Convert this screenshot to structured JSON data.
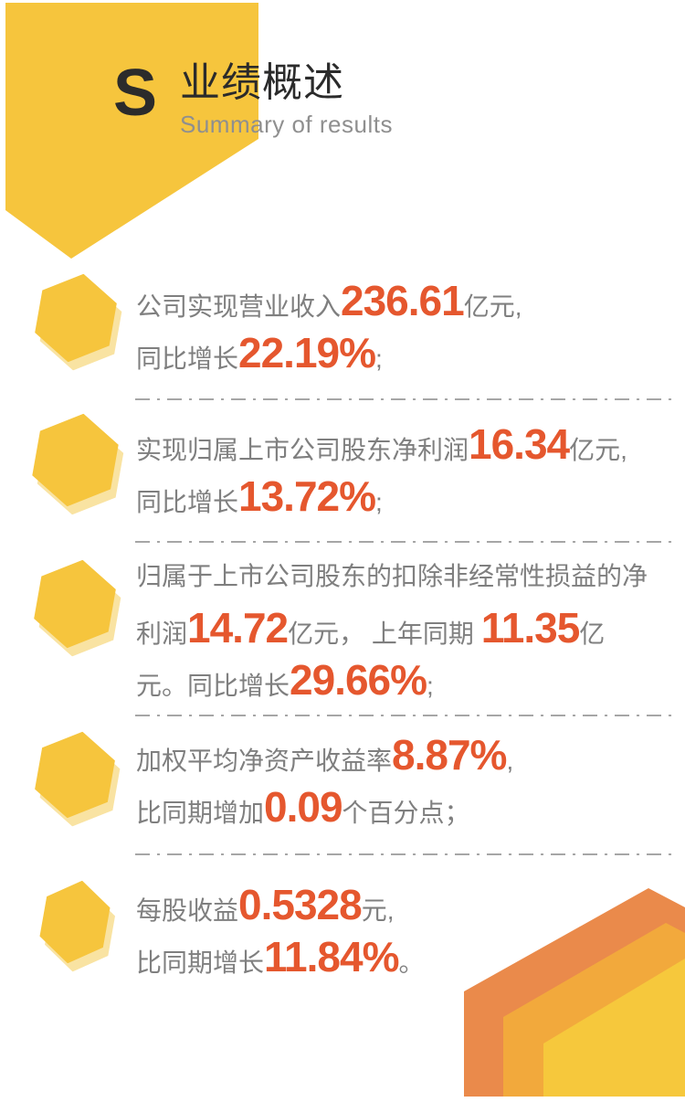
{
  "header": {
    "initial": "S",
    "title": "业绩概述",
    "subtitle": "Summary of results"
  },
  "items": [
    {
      "lines": [
        [
          {
            "t": "公司实现营业收入",
            "em": false
          },
          {
            "t": "236.61",
            "em": true
          },
          {
            "t": "亿元,",
            "em": false
          }
        ],
        [
          {
            "t": "同比增长",
            "em": false
          },
          {
            "t": "22.19%",
            "em": true
          },
          {
            "t": ";",
            "em": false
          }
        ]
      ]
    },
    {
      "lines": [
        [
          {
            "t": "实现归属上市公司股东净利润",
            "em": false
          },
          {
            "t": "16.34",
            "em": true
          },
          {
            "t": "亿元,",
            "em": false
          }
        ],
        [
          {
            "t": "同比增长",
            "em": false
          },
          {
            "t": "13.72%",
            "em": true
          },
          {
            "t": ";",
            "em": false
          }
        ]
      ]
    },
    {
      "lines": [
        [
          {
            "t": "归属于上市公司股东的扣除非经常性损益的净",
            "em": false
          }
        ],
        [
          {
            "t": "利润",
            "em": false
          },
          {
            "t": "14.72",
            "em": true
          },
          {
            "t": "亿元， 上年同期 ",
            "em": false
          },
          {
            "t": "11.35",
            "em": true
          },
          {
            "t": "亿",
            "em": false
          }
        ],
        [
          {
            "t": "元。同比增长",
            "em": false
          },
          {
            "t": "29.66%",
            "em": true
          },
          {
            "t": ";",
            "em": false
          }
        ]
      ]
    },
    {
      "lines": [
        [
          {
            "t": "加权平均净资产收益率",
            "em": false
          },
          {
            "t": "8.87%",
            "em": true
          },
          {
            "t": ",",
            "em": false
          }
        ],
        [
          {
            "t": "比同期增加",
            "em": false
          },
          {
            "t": "0.09",
            "em": true
          },
          {
            "t": "个百分点；",
            "em": false
          }
        ]
      ]
    },
    {
      "lines": [
        [
          {
            "t": "每股收益",
            "em": false
          },
          {
            "t": "0.5328",
            "em": true
          },
          {
            "t": "元,",
            "em": false
          }
        ],
        [
          {
            "t": "比同期增长",
            "em": false
          },
          {
            "t": "11.84%",
            "em": true
          },
          {
            "t": "。",
            "em": false
          }
        ]
      ]
    }
  ],
  "icons": {
    "bullet": "hexagon-icon",
    "corner": "layered-chevron-decoration",
    "banner": "pentagon-banner-shape"
  },
  "colors": {
    "yellow": "#F6C53D",
    "yellow_light": "#F9E3A2",
    "number_orange": "#E5572E",
    "body_gray": "#7F7F7F",
    "title_dark": "#2B2B2B",
    "subtitle_gray": "#8F8F8F",
    "divider_gray": "#A6A6A6",
    "corner_dark_orange": "#EA8A4B",
    "corner_amber": "#F2A93C",
    "corner_yellow": "#F6C83C"
  }
}
